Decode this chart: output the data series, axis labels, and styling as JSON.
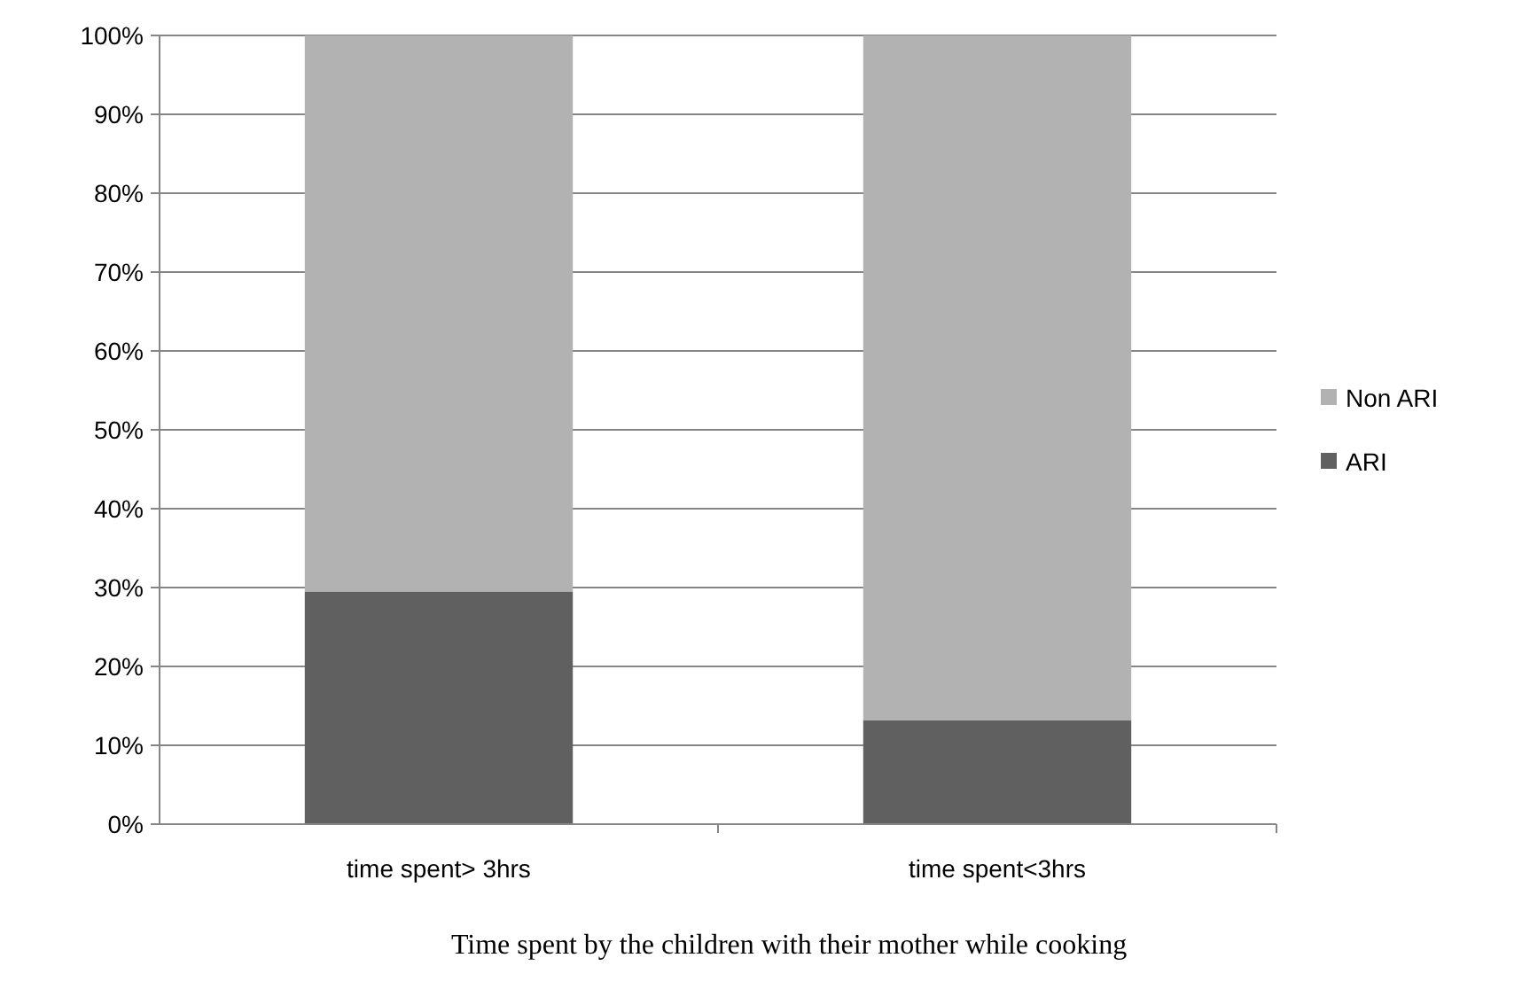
{
  "chart_data": {
    "type": "bar",
    "stacked": true,
    "xlabel": "Time spent by the children with their mother while cooking",
    "categories": [
      "time spent> 3hrs",
      "time spent<3hrs"
    ],
    "series": [
      {
        "name": "ARI",
        "color": "#606060",
        "values": [
          29.5,
          13.2
        ]
      },
      {
        "name": "Non ARI",
        "color": "#b2b2b2",
        "values": [
          70.5,
          86.8
        ]
      }
    ],
    "ylim": [
      0,
      100
    ],
    "yticks": [
      {
        "value": 0,
        "label": "0%"
      },
      {
        "value": 10,
        "label": "10%"
      },
      {
        "value": 20,
        "label": "20%"
      },
      {
        "value": 30,
        "label": "30%"
      },
      {
        "value": 40,
        "label": "40%"
      },
      {
        "value": 50,
        "label": "50%"
      },
      {
        "value": 60,
        "label": "60%"
      },
      {
        "value": 70,
        "label": "70%"
      },
      {
        "value": 80,
        "label": "80%"
      },
      {
        "value": 90,
        "label": "90%"
      },
      {
        "value": 100,
        "label": "100%"
      }
    ],
    "grid": "y",
    "legend": "right"
  }
}
